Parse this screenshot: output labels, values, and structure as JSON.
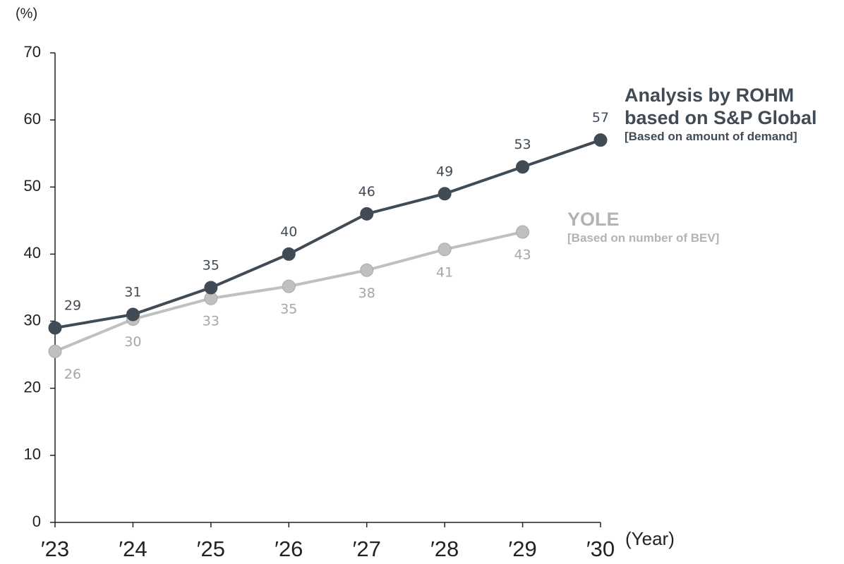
{
  "chart_data": {
    "type": "line",
    "y_label": "(%)",
    "x_label": "(Year)",
    "categories": [
      "′23",
      "′24",
      "′25",
      "′26",
      "′27",
      "′28",
      "′29",
      "′30"
    ],
    "series": [
      {
        "name": "Analysis by ROHM based on S&P Global",
        "sublabel": "[Based on amount of demand]",
        "color": "#414b55",
        "values": [
          29,
          31,
          35,
          40,
          46,
          49,
          53,
          57
        ]
      },
      {
        "name": "YOLE",
        "sublabel": "[Based on number of BEV]",
        "color": "#c0c0c0",
        "values": [
          25.5,
          30.3,
          33.4,
          35.2,
          37.6,
          40.7,
          43.3,
          null
        ],
        "value_labels": [
          "26",
          "30",
          "33",
          "35",
          "38",
          "41",
          "43",
          null
        ]
      }
    ],
    "ylim": [
      0,
      70
    ],
    "yticks": [
      0,
      10,
      20,
      30,
      40,
      50,
      60,
      70
    ]
  }
}
